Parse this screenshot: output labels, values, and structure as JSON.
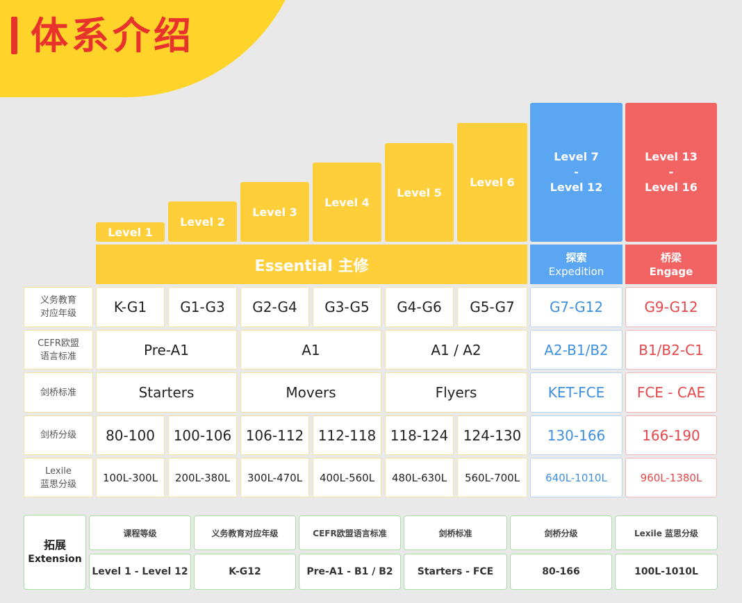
{
  "title": "体系介绍",
  "levels": [
    "Level 1",
    "Level 2",
    "Level 3",
    "Level 4",
    "Level 5",
    "Level 6"
  ],
  "blue_top": {
    "line1": "Level 7",
    "dash": "-",
    "line2": "Level 12"
  },
  "red_top": {
    "line1": "Level 13",
    "dash": "-",
    "line2": "Level 16"
  },
  "band": {
    "essential": "Essential 主修",
    "expedition_cn": "探索",
    "expedition_en": "Expedition",
    "engage_cn": "桥梁",
    "engage_en": "Engage"
  },
  "rows": [
    {
      "label1": "义务教育",
      "label2": "对应年级"
    },
    {
      "label1": "CEFR欧盟",
      "label2": "语言标准"
    },
    {
      "label1": "剑桥标准",
      "label2": ""
    },
    {
      "label1": "剑桥分级",
      "label2": ""
    },
    {
      "label1": "Lexile",
      "label2": "蓝思分级"
    }
  ],
  "grades": [
    "K-G1",
    "G1-G3",
    "G2-G4",
    "G3-G5",
    "G4-G6",
    "G5-G7"
  ],
  "cefr": [
    "Pre-A1",
    "A1",
    "A1 / A2"
  ],
  "cambridge": [
    "Starters",
    "Movers",
    "Flyers"
  ],
  "scores": [
    "80-100",
    "100-106",
    "106-112",
    "112-118",
    "118-124",
    "124-130"
  ],
  "lexile": [
    "100L-300L",
    "200L-380L",
    "300L-470L",
    "400L-560L",
    "480L-630L",
    "560L-700L"
  ],
  "blue_col": [
    "G7-G12",
    "A2-B1/B2",
    "KET-FCE",
    "130-166",
    "640L-1010L"
  ],
  "red_col": [
    "G9-G12",
    "B1/B2-C1",
    "FCE - CAE",
    "166-190",
    "960L-1380L"
  ],
  "extension": {
    "label_cn": "拓展",
    "label_en": "Extension",
    "headers": [
      "课程等级",
      "义务教育对应年级",
      "CEFR欧盟语言标准",
      "剑桥标准",
      "剑桥分级",
      "Lexile 蓝思分级"
    ],
    "values": [
      "Level 1 - Level 12",
      "K-G12",
      "Pre-A1 - B1 / B2",
      "Starters - FCE",
      "80-166",
      "100L-1010L"
    ]
  },
  "colors": {
    "yellow": "#ffcf3b",
    "blue": "#5aa6f2",
    "red": "#f26464",
    "green": "#a9dfa5",
    "title_red": "#e8322c"
  }
}
